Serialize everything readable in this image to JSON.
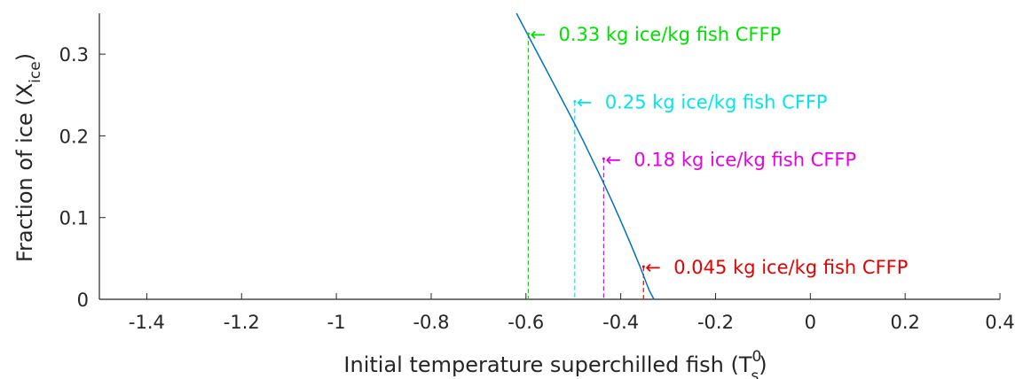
{
  "chart_data": {
    "type": "line",
    "title": "",
    "xlabel_main": "Initial temperature superchilled fish (T",
    "xlabel_sub": "s",
    "xlabel_sup": "0",
    "xlabel_close": ")",
    "ylabel_main": "Fraction of ice (X",
    "ylabel_sub": "ice",
    "ylabel_close": ")",
    "xlim": [
      -1.5,
      0.4
    ],
    "ylim": [
      0,
      0.35
    ],
    "xticks": [
      -1.4,
      -1.2,
      -1,
      -0.8,
      -0.6,
      -0.4,
      -0.2,
      0,
      0.2,
      0.4
    ],
    "xtick_labels": [
      "-1.4",
      "-1.2",
      "-1",
      "-0.8",
      "-0.6",
      "-0.4",
      "-0.2",
      "0",
      "0.2",
      "0.4"
    ],
    "yticks": [
      0,
      0.1,
      0.2,
      0.3
    ],
    "ytick_labels": [
      "0",
      "0.1",
      "0.2",
      "0.3"
    ],
    "grid": false,
    "series": [
      {
        "color": "#0072BD",
        "x": [
          -0.62,
          -0.6,
          -0.58,
          -0.56,
          -0.54,
          -0.52,
          -0.5,
          -0.48,
          -0.46,
          -0.44,
          -0.42,
          -0.4,
          -0.38,
          -0.36,
          -0.34,
          -0.33
        ],
        "y": [
          0.35,
          0.328,
          0.306,
          0.284,
          0.262,
          0.24,
          0.218,
          0.195,
          0.171,
          0.147,
          0.122,
          0.096,
          0.069,
          0.041,
          0.011,
          0.0
        ]
      }
    ],
    "annotations": [
      {
        "text": "0.33 kg ice/kg fish CFFP",
        "x": -0.595,
        "y": 0.325,
        "color": "#00E000"
      },
      {
        "text": "0.25 kg ice/kg fish CFFP",
        "x": -0.497,
        "y": 0.242,
        "color": "#00E5EE"
      },
      {
        "text": "0.18 kg ice/kg fish CFFP",
        "x": -0.436,
        "y": 0.172,
        "color": "#E600E6"
      },
      {
        "text": "0.045 kg ice/kg fish CFFP",
        "x": -0.352,
        "y": 0.04,
        "color": "#E60000"
      }
    ]
  }
}
